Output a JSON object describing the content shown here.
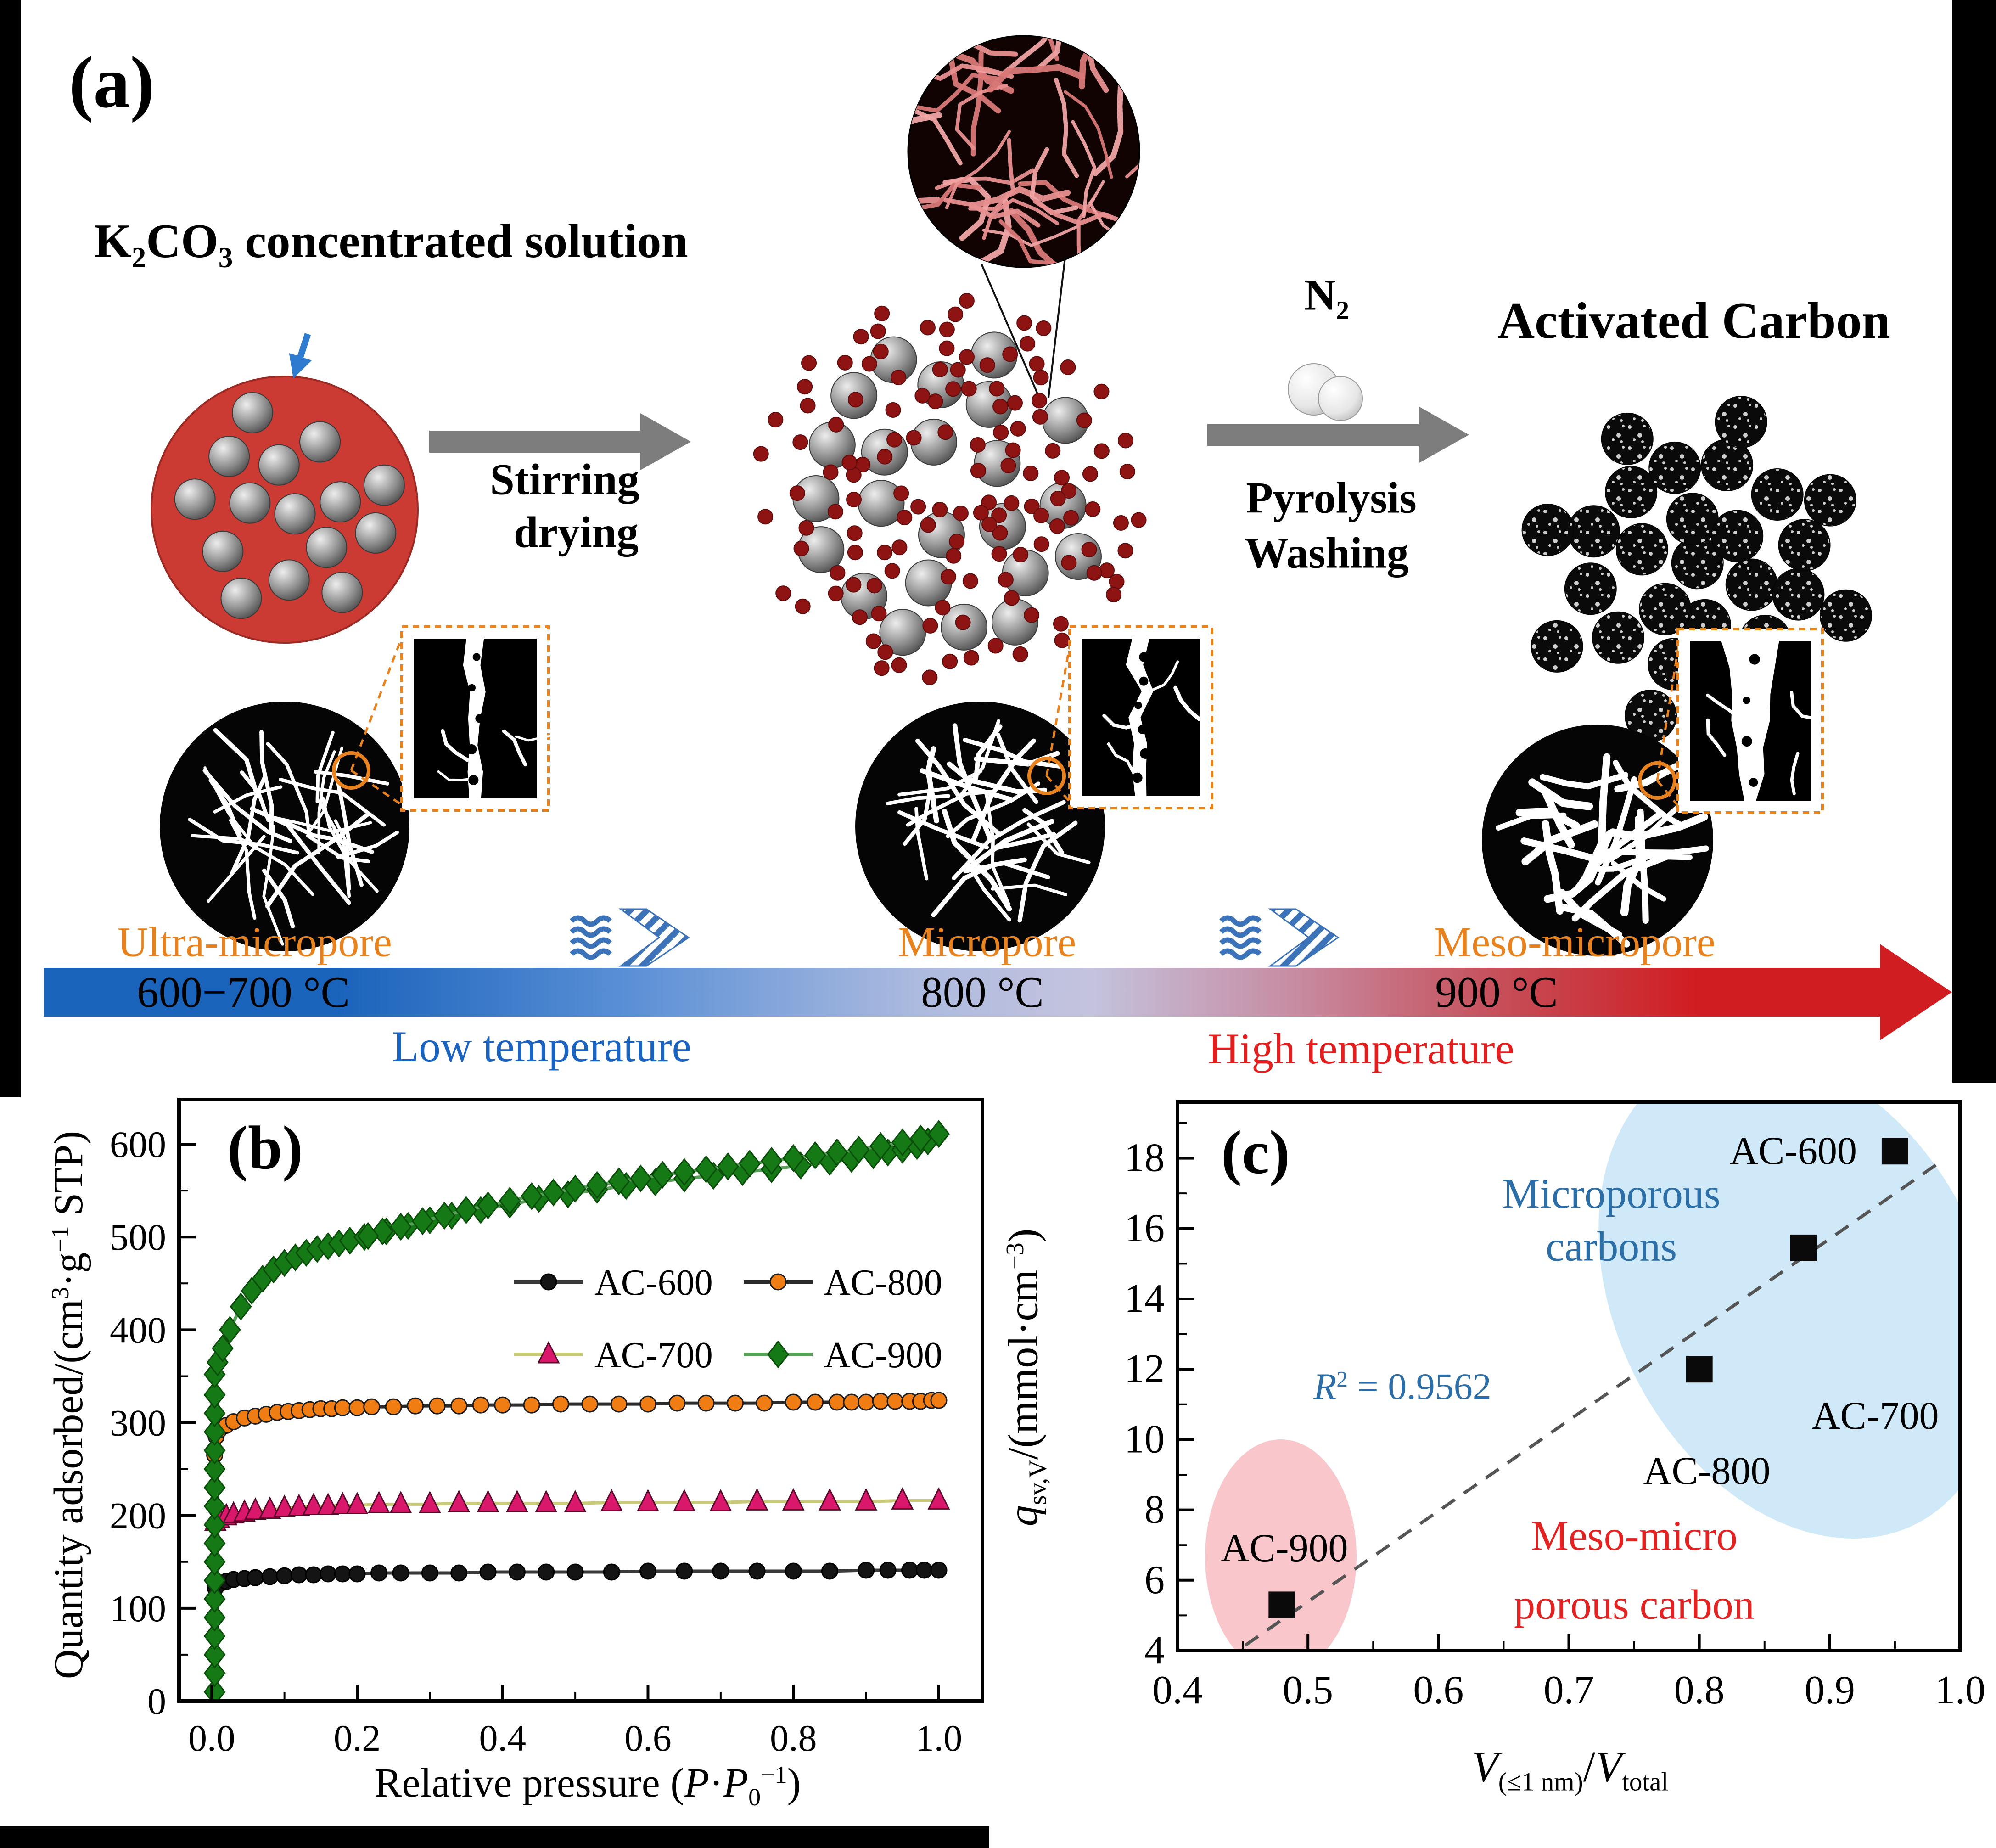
{
  "figure": {
    "bg": "#ffffff",
    "frame_color": "#000000"
  },
  "panel_a": {
    "label": "(a)",
    "title_parts": [
      [
        "K",
        ""
      ],
      [
        "2",
        "sub"
      ],
      [
        "CO",
        ""
      ],
      [
        "3",
        "sub"
      ],
      [
        " concentrated solution",
        ""
      ]
    ],
    "step1_lines": [
      "Stirring",
      "drying"
    ],
    "n2_parts": [
      [
        "N",
        ""
      ],
      [
        "2",
        "sub"
      ]
    ],
    "step2_lines": [
      "Pyrolysis",
      "Washing"
    ],
    "product_label": "Activated Carbon",
    "stage_labels": [
      "Ultra-micropore",
      "Micropore",
      "Meso-micropore"
    ],
    "temp_labels": [
      "600−700 °C",
      "800 °C",
      "900 °C"
    ],
    "low_temp_label": "Low temperature",
    "high_temp_label": "High temperature",
    "colors": {
      "solution_red": "#cb3a33",
      "dot_maroon": "#8e1414",
      "arrow_gray": "#7d7d7d",
      "label_orange": "#e8821e",
      "low_blue": "#1b63c1",
      "high_red": "#e31e1e",
      "bar_blue": "#1a63bb",
      "bar_red": "#d01d22",
      "stripe_blue": "#3c72b8",
      "sem_pink": "#e88f8f"
    }
  },
  "chart_data": [
    {
      "id": "panel-b",
      "type": "line",
      "panel_label": "(b)",
      "xlabel_parts": [
        [
          "Relative pressure (",
          ""
        ],
        [
          "P",
          "i"
        ],
        [
          "·",
          ""
        ],
        [
          "P",
          "i"
        ],
        [
          "0",
          "sub"
        ],
        [
          "−1",
          "sup"
        ],
        [
          ")",
          ""
        ]
      ],
      "ylabel_parts": [
        [
          "Quantity adsorbed/(cm",
          ""
        ],
        [
          "3",
          "sup"
        ],
        [
          "·g",
          ""
        ],
        [
          "−1",
          "sup"
        ],
        [
          " STP)",
          ""
        ]
      ],
      "xlim": [
        -0.045,
        1.06
      ],
      "ylim": [
        0,
        648
      ],
      "xticks": [
        {
          "v": 0.0,
          "l": "0.0"
        },
        {
          "v": 0.2,
          "l": "0.2"
        },
        {
          "v": 0.4,
          "l": "0.4"
        },
        {
          "v": 0.6,
          "l": "0.6"
        },
        {
          "v": 0.8,
          "l": "0.8"
        },
        {
          "v": 1.0,
          "l": "1.0"
        }
      ],
      "xminor": [
        0.1,
        0.3,
        0.5,
        0.7,
        0.9
      ],
      "yticks": [
        {
          "v": 0,
          "l": "0"
        },
        {
          "v": 100,
          "l": "100"
        },
        {
          "v": 200,
          "l": "200"
        },
        {
          "v": 300,
          "l": "300"
        },
        {
          "v": 400,
          "l": "400"
        },
        {
          "v": 500,
          "l": "500"
        },
        {
          "v": 600,
          "l": "600"
        }
      ],
      "yminor": [
        50,
        150,
        250,
        350,
        450,
        550
      ],
      "legend_rows": [
        [
          "AC-600",
          "AC-800"
        ],
        [
          "AC-700",
          "AC-900"
        ]
      ],
      "series": [
        {
          "name": "AC-600",
          "legend": true,
          "marker": "circle",
          "marker_color": "#141414",
          "edge": "#000000",
          "line_color": "#3a3a3a",
          "x": [
            0.005,
            0.01,
            0.02,
            0.03,
            0.045,
            0.06,
            0.08,
            0.1,
            0.12,
            0.14,
            0.16,
            0.18,
            0.2,
            0.23,
            0.26,
            0.3,
            0.34,
            0.38,
            0.42,
            0.46,
            0.5,
            0.55,
            0.6,
            0.65,
            0.7,
            0.75,
            0.8,
            0.85,
            0.9,
            0.93,
            0.96,
            0.98,
            1.0
          ],
          "y": [
            122,
            126,
            129,
            131,
            132,
            133,
            134,
            135,
            136,
            136,
            137,
            137,
            137,
            138,
            138,
            138,
            138,
            139,
            139,
            139,
            139,
            139,
            140,
            140,
            140,
            140,
            140,
            140,
            141,
            141,
            141,
            141,
            141
          ]
        },
        {
          "name": "AC-700",
          "legend": true,
          "marker": "triangle",
          "marker_color": "#d9186b",
          "edge": "#58082b",
          "line_color": "#c9c97c",
          "x": [
            0.005,
            0.01,
            0.02,
            0.03,
            0.045,
            0.06,
            0.08,
            0.1,
            0.12,
            0.14,
            0.16,
            0.18,
            0.2,
            0.23,
            0.26,
            0.3,
            0.34,
            0.38,
            0.42,
            0.46,
            0.5,
            0.55,
            0.6,
            0.65,
            0.7,
            0.75,
            0.8,
            0.85,
            0.9,
            0.95,
            1.0
          ],
          "y": [
            193,
            196,
            199,
            201,
            203,
            205,
            206,
            208,
            209,
            210,
            210,
            211,
            211,
            212,
            212,
            212,
            213,
            213,
            213,
            213,
            213,
            214,
            214,
            214,
            214,
            215,
            215,
            215,
            215,
            216,
            216
          ]
        },
        {
          "name": "AC-800",
          "legend": true,
          "marker": "circle",
          "marker_color": "#f07d13",
          "edge": "#1d1d1d",
          "line_color": "#2b2b2b",
          "x": [
            0.004,
            0.004,
            0.006,
            0.01,
            0.02,
            0.03,
            0.045,
            0.06,
            0.075,
            0.09,
            0.105,
            0.12,
            0.135,
            0.15,
            0.165,
            0.18,
            0.2,
            0.22,
            0.25,
            0.28,
            0.31,
            0.34,
            0.37,
            0.4,
            0.44,
            0.48,
            0.52,
            0.56,
            0.6,
            0.64,
            0.68,
            0.72,
            0.76,
            0.8,
            0.83,
            0.86,
            0.88,
            0.9,
            0.92,
            0.94,
            0.96,
            0.975,
            0.99,
            1.0
          ],
          "y": [
            230,
            265,
            285,
            292,
            297,
            301,
            305,
            307,
            309,
            311,
            312,
            313,
            314,
            315,
            315,
            316,
            316,
            317,
            317,
            318,
            318,
            318,
            319,
            319,
            319,
            320,
            320,
            320,
            320,
            321,
            321,
            321,
            321,
            322,
            322,
            322,
            322,
            322,
            323,
            323,
            323,
            323,
            324,
            324
          ]
        },
        {
          "name": "AC-900",
          "legend": true,
          "marker": "diamond",
          "marker_color": "#157a15",
          "edge": "#0b4d0b",
          "line_color": "#58a058",
          "x": [
            0.004,
            0.004,
            0.004,
            0.004,
            0.004,
            0.004,
            0.004,
            0.004,
            0.004,
            0.004,
            0.004,
            0.004,
            0.004,
            0.004,
            0.004,
            0.004,
            0.004,
            0.004,
            0.008,
            0.015,
            0.025,
            0.04,
            0.055,
            0.07,
            0.085,
            0.1,
            0.115,
            0.13,
            0.145,
            0.16,
            0.175,
            0.19,
            0.21,
            0.24,
            0.27,
            0.3,
            0.33,
            0.37,
            0.41,
            0.45,
            0.49,
            0.53,
            0.57,
            0.61,
            0.65,
            0.69,
            0.73,
            0.77,
            0.81,
            0.85,
            0.88,
            0.91,
            0.93,
            0.95,
            0.97,
            0.985,
            1.0
          ],
          "y": [
            10,
            30,
            50,
            70,
            90,
            110,
            130,
            150,
            170,
            190,
            210,
            230,
            250,
            270,
            290,
            310,
            330,
            352,
            365,
            380,
            400,
            425,
            442,
            455,
            465,
            472,
            478,
            483,
            487,
            490,
            493,
            496,
            500,
            506,
            512,
            518,
            523,
            529,
            535,
            541,
            546,
            551,
            555,
            559,
            563,
            566,
            570,
            573,
            577,
            581,
            584,
            588,
            591,
            594,
            598,
            603,
            611
          ]
        },
        {
          "name": "AC-900-desorption",
          "legend": false,
          "marker": "diamond",
          "marker_color": "#157a15",
          "edge": "#0b4d0b",
          "line_color": "#58a058",
          "x": [
            1.0,
            0.975,
            0.95,
            0.92,
            0.89,
            0.86,
            0.83,
            0.8,
            0.77,
            0.74,
            0.71,
            0.68,
            0.65,
            0.62,
            0.59,
            0.56,
            0.53,
            0.5,
            0.47,
            0.44,
            0.41,
            0.38,
            0.35,
            0.32,
            0.29,
            0.26,
            0.235,
            0.215
          ],
          "y": [
            611,
            606,
            602,
            598,
            594,
            591,
            588,
            585,
            582,
            579,
            576,
            573,
            570,
            567,
            563,
            560,
            556,
            552,
            548,
            544,
            539,
            534,
            529,
            523,
            517,
            511,
            506,
            501
          ]
        }
      ]
    },
    {
      "id": "panel-c",
      "type": "scatter",
      "panel_label": "(c)",
      "xlabel_parts": [
        [
          "V",
          "i"
        ],
        [
          "(≤1 nm)",
          "sub"
        ],
        [
          "/",
          ""
        ],
        [
          "V",
          "i"
        ],
        [
          "total",
          "sub"
        ]
      ],
      "ylabel_parts": [
        [
          "q",
          "i"
        ],
        [
          "sv,V",
          "sub"
        ],
        [
          "/(mmol·cm",
          ""
        ],
        [
          "−3",
          "sup"
        ],
        [
          ")",
          ""
        ]
      ],
      "xlim": [
        0.4,
        1.0
      ],
      "ylim": [
        4,
        19.6
      ],
      "xticks": [
        {
          "v": 0.4,
          "l": "0.4"
        },
        {
          "v": 0.5,
          "l": "0.5"
        },
        {
          "v": 0.6,
          "l": "0.6"
        },
        {
          "v": 0.7,
          "l": "0.7"
        },
        {
          "v": 0.8,
          "l": "0.8"
        },
        {
          "v": 0.9,
          "l": "0.9"
        },
        {
          "v": 1.0,
          "l": "1.0"
        }
      ],
      "xminor": [
        0.45,
        0.55,
        0.65,
        0.75,
        0.85,
        0.95
      ],
      "yticks": [
        {
          "v": 4,
          "l": "4"
        },
        {
          "v": 6,
          "l": "6"
        },
        {
          "v": 8,
          "l": "8"
        },
        {
          "v": 10,
          "l": "10"
        },
        {
          "v": 12,
          "l": "12"
        },
        {
          "v": 14,
          "l": "14"
        },
        {
          "v": 16,
          "l": "16"
        },
        {
          "v": 18,
          "l": "18"
        }
      ],
      "yminor": [
        5,
        7,
        9,
        11,
        13,
        15,
        17,
        19
      ],
      "marker_color": "#0a0a0a",
      "points": [
        {
          "name": "AC-600",
          "x": 0.95,
          "y": 18.2
        },
        {
          "name": "AC-700",
          "x": 0.88,
          "y": 15.45
        },
        {
          "name": "AC-800",
          "x": 0.8,
          "y": 12.0
        },
        {
          "name": "AC-900",
          "x": 0.48,
          "y": 5.3
        }
      ],
      "trendline": {
        "x1": 0.452,
        "y1": 4.15,
        "x2": 0.985,
        "y2": 17.9,
        "color": "#555555"
      },
      "r2_parts": [
        [
          "R",
          "i"
        ],
        [
          "2",
          "sup"
        ],
        [
          " = 0.9562",
          ""
        ]
      ],
      "annotations": {
        "micro_line1": "Microporous",
        "micro_line2": "carbons",
        "meso_line1": "Meso-micro",
        "meso_line2": "porous carbon",
        "micro_color": "#2b6ea8",
        "meso_color": "#e32222",
        "micro_ellipse_color": "#cfe9f8",
        "meso_ellipse_color": "#f9c6cb"
      }
    }
  ]
}
